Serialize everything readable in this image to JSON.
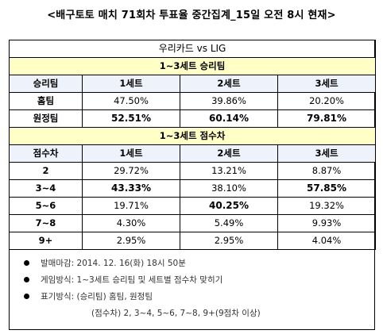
{
  "title": "<배구토토 매치 71회차 투표율 중간집계_15일 오전 8시 현재>",
  "match": "우리카드 vs LIG",
  "section1": {
    "title": "1~3세트 승리팀",
    "headers": [
      "승리팀",
      "1세트",
      "2세트",
      "3세트"
    ],
    "rows": [
      {
        "label": "홈팀",
        "v1": "47.50%",
        "v2": "39.86%",
        "v3": "20.20%"
      },
      {
        "label": "원정팀",
        "v1": "52.51%",
        "v2": "60.14%",
        "v3": "79.81%"
      }
    ]
  },
  "section2": {
    "title": "1~3세트  점수차",
    "headers": [
      "점수차",
      "1세트",
      "2세트",
      "3세트"
    ],
    "rows": [
      {
        "label": "2",
        "v1": "29.72%",
        "v2": "13.21%",
        "v3": "8.87%"
      },
      {
        "label": "3~4",
        "v1": "43.33%",
        "v2": "38.10%",
        "v3": "57.85%"
      },
      {
        "label": "5~6",
        "v1": "19.71%",
        "v2": "40.25%",
        "v3": "19.32%"
      },
      {
        "label": "7~8",
        "v1": "4.30%",
        "v2": "5.49%",
        "v3": "9.93%"
      },
      {
        "label": "9+",
        "v1": "2.95%",
        "v2": "2.95%",
        "v3": "4.04%"
      }
    ]
  },
  "notes": [
    "발매마감: 2014. 12. 16(화) 18시 50분",
    "게임방식: 1~3세트 승리팀 및 세트별 점수차 맞히기",
    "표기방식: (승리팀) 홈팀, 원정팀"
  ],
  "note_sub": "(점수차) 2, 3~4, 5~6, 7~8, 9+(9점차 이상)",
  "colors": {
    "section_bg": "#ffffc6",
    "header_bg": "#eef3fb"
  }
}
